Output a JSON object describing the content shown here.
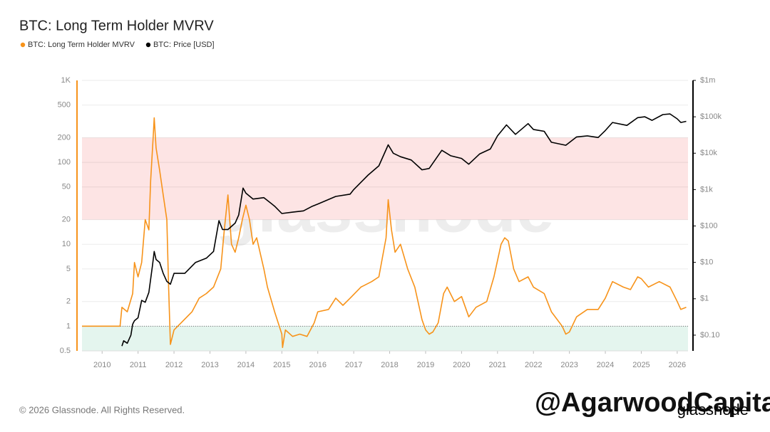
{
  "chart_data": {
    "type": "line",
    "title": "BTC: Long Term Holder MVRV",
    "watermark": "glassnode",
    "footer": "© 2026 Glassnode. All Rights Reserved.",
    "overlay_text": "@AgarwoodCapital",
    "logo_text": "glassnode",
    "xlim": [
      2009.44,
      2026.3
    ],
    "xticks": [
      2010,
      2011,
      2012,
      2013,
      2014,
      2015,
      2016,
      2017,
      2018,
      2019,
      2020,
      2021,
      2022,
      2023,
      2024,
      2025,
      2026
    ],
    "ylog": true,
    "ylim": [
      0.5,
      1000
    ],
    "yticks": [
      0.5,
      1,
      2,
      5,
      10,
      20,
      50,
      100,
      200,
      500,
      {
        "value": 1000,
        "label": "1K"
      }
    ],
    "y2log": true,
    "y2lim": [
      0.037,
      1000000
    ],
    "y2ticks": [
      {
        "value": 0.1,
        "label": "$0.10"
      },
      {
        "value": 1,
        "label": "$1"
      },
      {
        "value": 10,
        "label": "$10"
      },
      {
        "value": 100,
        "label": "$100"
      },
      {
        "value": 1000,
        "label": "$1k"
      },
      {
        "value": 10000,
        "label": "$10k"
      },
      {
        "value": 100000,
        "label": "$100k"
      },
      {
        "value": 1000000,
        "label": "$1m"
      }
    ],
    "grid": true,
    "legend": "top-left",
    "bands": [
      {
        "from": 20,
        "to": 200,
        "color": "#fde4e4"
      },
      {
        "from": 0.5,
        "to": 1,
        "color": "#e4f5ee"
      }
    ],
    "reference_line": 1,
    "series": [
      {
        "name": "BTC: Long Term Holder MVRV",
        "color": "#f7931a",
        "x": [
          2009.44,
          2010.5,
          2010.55,
          2010.7,
          2010.85,
          2010.9,
          2011.0,
          2011.1,
          2011.2,
          2011.3,
          2011.35,
          2011.42,
          2011.45,
          2011.5,
          2011.6,
          2011.7,
          2011.8,
          2011.85,
          2011.9,
          2012.0,
          2012.2,
          2012.5,
          2012.7,
          2012.9,
          2013.1,
          2013.3,
          2013.4,
          2013.5,
          2013.6,
          2013.7,
          2013.8,
          2013.9,
          2014.0,
          2014.1,
          2014.2,
          2014.3,
          2014.5,
          2014.6,
          2014.8,
          2015.0,
          2015.02,
          2015.1,
          2015.3,
          2015.5,
          2015.7,
          2015.9,
          2016.0,
          2016.3,
          2016.5,
          2016.7,
          2016.9,
          2017.2,
          2017.5,
          2017.7,
          2017.9,
          2017.96,
          2018.05,
          2018.15,
          2018.3,
          2018.5,
          2018.7,
          2018.9,
          2019.0,
          2019.1,
          2019.2,
          2019.35,
          2019.5,
          2019.6,
          2019.8,
          2020.0,
          2020.2,
          2020.4,
          2020.7,
          2020.9,
          2021.1,
          2021.2,
          2021.3,
          2021.45,
          2021.6,
          2021.85,
          2022.0,
          2022.3,
          2022.5,
          2022.8,
          2022.9,
          2023.0,
          2023.2,
          2023.5,
          2023.8,
          2024.0,
          2024.2,
          2024.5,
          2024.7,
          2024.9,
          2025.0,
          2025.2,
          2025.5,
          2025.8,
          2026.0,
          2026.1,
          2026.25
        ],
        "values": [
          1,
          1,
          1.7,
          1.5,
          2.5,
          6,
          4,
          6,
          20,
          15,
          60,
          200,
          350,
          150,
          80,
          40,
          20,
          3,
          0.6,
          0.9,
          1.1,
          1.5,
          2.2,
          2.5,
          3,
          5,
          15,
          40,
          10,
          8,
          12,
          20,
          30,
          20,
          10,
          12,
          5,
          3,
          1.5,
          0.8,
          0.55,
          0.9,
          0.75,
          0.8,
          0.75,
          1.1,
          1.5,
          1.6,
          2.2,
          1.8,
          2.2,
          3,
          3.5,
          4,
          12,
          35,
          15,
          8,
          10,
          5,
          3,
          1.2,
          0.9,
          0.8,
          0.85,
          1.1,
          2.5,
          3,
          2,
          2.3,
          1.3,
          1.7,
          2,
          4,
          10,
          12,
          11,
          5,
          3.5,
          4,
          3,
          2.5,
          1.5,
          1.0,
          0.8,
          0.85,
          1.3,
          1.6,
          1.6,
          2.2,
          3.5,
          3,
          2.8,
          4,
          3.8,
          3,
          3.5,
          3,
          2,
          1.6,
          1.7
        ]
      },
      {
        "name": "BTC: Price [USD]",
        "color": "#000000",
        "axis": "y2",
        "x": [
          2010.55,
          2010.6,
          2010.7,
          2010.8,
          2010.85,
          2010.9,
          2011.0,
          2011.1,
          2011.2,
          2011.3,
          2011.4,
          2011.45,
          2011.5,
          2011.6,
          2011.7,
          2011.8,
          2011.9,
          2012.0,
          2012.3,
          2012.6,
          2012.9,
          2013.1,
          2013.25,
          2013.35,
          2013.5,
          2013.7,
          2013.8,
          2013.92,
          2014.0,
          2014.2,
          2014.5,
          2014.8,
          2015.0,
          2015.3,
          2015.6,
          2015.85,
          2016.0,
          2016.5,
          2016.9,
          2017.0,
          2017.4,
          2017.7,
          2017.96,
          2018.1,
          2018.3,
          2018.6,
          2018.9,
          2019.1,
          2019.45,
          2019.7,
          2020.0,
          2020.2,
          2020.5,
          2020.8,
          2021.0,
          2021.25,
          2021.5,
          2021.85,
          2022.0,
          2022.3,
          2022.5,
          2022.9,
          2023.2,
          2023.5,
          2023.8,
          2024.0,
          2024.2,
          2024.6,
          2024.9,
          2025.1,
          2025.3,
          2025.6,
          2025.8,
          2026.0,
          2026.1,
          2026.25
        ],
        "values": [
          0.05,
          0.07,
          0.06,
          0.1,
          0.2,
          0.25,
          0.3,
          0.9,
          0.8,
          1.5,
          8,
          20,
          12,
          10,
          5,
          3,
          2.5,
          5,
          5,
          10,
          13,
          20,
          140,
          80,
          80,
          120,
          200,
          1100,
          800,
          550,
          600,
          350,
          220,
          240,
          260,
          350,
          400,
          650,
          750,
          1000,
          2500,
          4500,
          17000,
          10000,
          8000,
          6500,
          3500,
          3800,
          12000,
          8500,
          7200,
          5000,
          9500,
          13000,
          30000,
          60000,
          33000,
          65000,
          45000,
          40000,
          20000,
          16500,
          28000,
          30000,
          27000,
          42000,
          70000,
          58000,
          95000,
          100000,
          80000,
          115000,
          120000,
          88000,
          70000,
          75000
        ]
      }
    ]
  }
}
